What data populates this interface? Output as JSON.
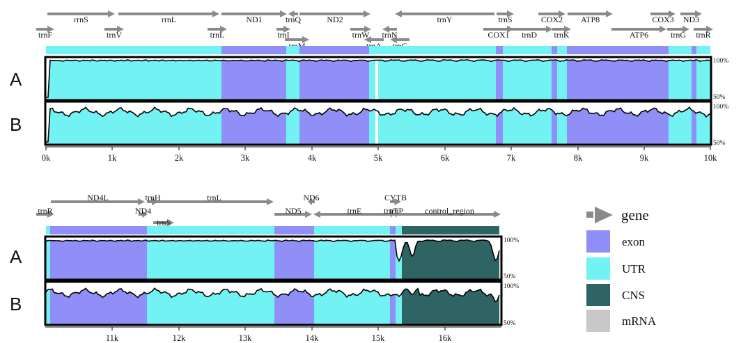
{
  "colors": {
    "exon": "#8f8ff7",
    "utr": "#72f2f2",
    "cns": "#2f6464",
    "mrna": "#c8c8c8",
    "gene_arrow": "#8a8a8a",
    "profile_fill_light": "#ffffff",
    "frame": "#000000"
  },
  "rows": {
    "a_label": "A",
    "b_label": "B"
  },
  "percent": {
    "top": "100%",
    "bottom": "50%"
  },
  "legend": {
    "gene": "gene",
    "exon": "exon",
    "utr": "UTR",
    "cns": "CNS",
    "mrna": "mRNA"
  },
  "panel1": {
    "ticks": [
      "0k",
      "1k",
      "2k",
      "3k",
      "4k",
      "5k",
      "6k",
      "7k",
      "8k",
      "9k",
      "10k"
    ],
    "genes": [
      {
        "name": "rrnS",
        "dir": "right",
        "label_row": "top"
      },
      {
        "name": "rrnL",
        "dir": "right",
        "label_row": "top"
      },
      {
        "name": "ND1",
        "dir": "right",
        "label_row": "top"
      },
      {
        "name": "trnQ",
        "dir": "left",
        "label_row": "top"
      },
      {
        "name": "ND2",
        "dir": "right",
        "label_row": "top"
      },
      {
        "name": "trnY",
        "dir": "left",
        "label_row": "top"
      },
      {
        "name": "trnS",
        "dir": "right",
        "label_row": "top"
      },
      {
        "name": "COX2",
        "dir": "right",
        "label_row": "top"
      },
      {
        "name": "ATP8",
        "dir": "right",
        "label_row": "top"
      },
      {
        "name": "COX3",
        "dir": "right",
        "label_row": "top"
      },
      {
        "name": "ND3",
        "dir": "right",
        "label_row": "top"
      },
      {
        "name": "trnF",
        "dir": "right",
        "label_row": "mid"
      },
      {
        "name": "trnV",
        "dir": "right",
        "label_row": "mid"
      },
      {
        "name": "trnL",
        "dir": "right",
        "label_row": "mid"
      },
      {
        "name": "trnI",
        "dir": "right",
        "label_row": "mid"
      },
      {
        "name": "trnW",
        "dir": "right",
        "label_row": "mid"
      },
      {
        "name": "trnN",
        "dir": "left",
        "label_row": "mid"
      },
      {
        "name": "COX1",
        "dir": "right",
        "label_row": "mid"
      },
      {
        "name": "trnD",
        "dir": "right",
        "label_row": "mid"
      },
      {
        "name": "trnK",
        "dir": "right",
        "label_row": "mid"
      },
      {
        "name": "ATP6",
        "dir": "right",
        "label_row": "mid"
      },
      {
        "name": "trnG",
        "dir": "right",
        "label_row": "mid"
      },
      {
        "name": "trnR",
        "dir": "right",
        "label_row": "mid"
      },
      {
        "name": "trnM",
        "dir": "right",
        "label_row": "low"
      },
      {
        "name": "trnA",
        "dir": "left",
        "label_row": "low"
      },
      {
        "name": "trnC",
        "dir": "left",
        "label_row": "low"
      }
    ]
  },
  "panel2": {
    "ticks": [
      "11k",
      "12k",
      "13k",
      "14k",
      "15k",
      "16k"
    ],
    "genes": [
      {
        "name": "ND4L",
        "dir": "right",
        "label_row": "top"
      },
      {
        "name": "trnH",
        "dir": "right",
        "label_row": "top"
      },
      {
        "name": "trnL",
        "dir": "right",
        "label_row": "top"
      },
      {
        "name": "ND6",
        "dir": "left",
        "label_row": "top"
      },
      {
        "name": "CYTB",
        "dir": "right",
        "label_row": "top"
      },
      {
        "name": "trnR",
        "dir": "right",
        "label_row": "mid"
      },
      {
        "name": "ND4",
        "dir": "right",
        "label_row": "mid"
      },
      {
        "name": "ND5",
        "dir": "right",
        "label_row": "mid"
      },
      {
        "name": "trnE",
        "dir": "left",
        "label_row": "mid"
      },
      {
        "name": "trnT",
        "dir": "right",
        "label_row": "mid"
      },
      {
        "name": "trnP",
        "dir": "left",
        "label_row": "mid"
      },
      {
        "name": "control_region",
        "dir": "right",
        "label_row": "mid"
      },
      {
        "name": "trnS",
        "dir": "right",
        "label_row": "low"
      }
    ]
  }
}
